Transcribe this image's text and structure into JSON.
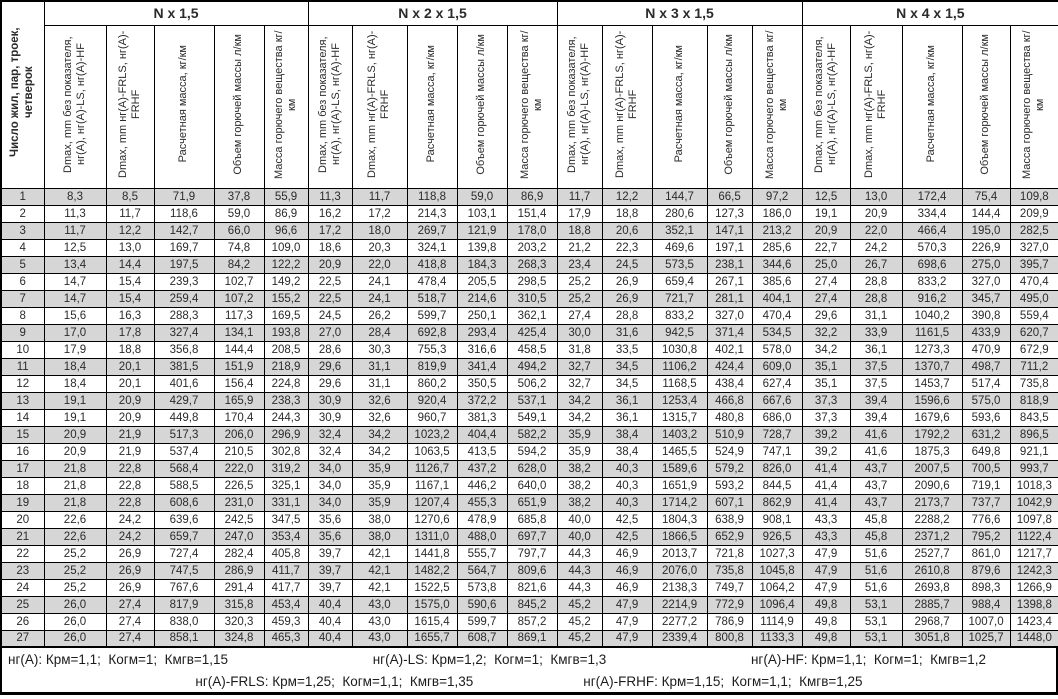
{
  "table": {
    "row_header_label": "Число жил, пар, троек, четверок",
    "groups": [
      {
        "title": "N x 1,5"
      },
      {
        "title": "N x 2 x 1,5"
      },
      {
        "title": "N x 3 x 1,5"
      },
      {
        "title": "N x 4 x 1,5"
      }
    ],
    "subheaders": [
      "Dmax, mm без показателя, нг(A), нг(A)-LS, нг(A)-HF",
      "Dmax, mm нг(A)-FRLS, нг(A)-FRHF",
      "Расчетная масса, кг/км",
      "Объем горючей массы л/км",
      "Масса горючего вещества кг/км"
    ],
    "rows": [
      {
        "n": "1",
        "cells": [
          "8,3",
          "8,5",
          "71,9",
          "37,8",
          "55,9",
          "11,3",
          "11,7",
          "118,8",
          "59,0",
          "86,9",
          "11,7",
          "12,2",
          "144,7",
          "66,5",
          "97,2",
          "12,5",
          "13,0",
          "172,4",
          "75,4",
          "109,8"
        ]
      },
      {
        "n": "2",
        "cells": [
          "11,3",
          "11,7",
          "118,6",
          "59,0",
          "86,9",
          "16,2",
          "17,2",
          "214,3",
          "103,1",
          "151,4",
          "17,9",
          "18,8",
          "280,6",
          "127,3",
          "186,0",
          "19,1",
          "20,9",
          "334,4",
          "144,4",
          "209,9"
        ]
      },
      {
        "n": "3",
        "cells": [
          "11,7",
          "12,2",
          "142,7",
          "66,0",
          "96,6",
          "17,2",
          "18,0",
          "269,7",
          "121,9",
          "178,0",
          "18,8",
          "20,6",
          "352,1",
          "147,1",
          "213,2",
          "20,9",
          "22,0",
          "466,4",
          "195,0",
          "282,5"
        ]
      },
      {
        "n": "4",
        "cells": [
          "12,5",
          "13,0",
          "169,7",
          "74,8",
          "109,0",
          "18,6",
          "20,3",
          "324,1",
          "139,8",
          "203,2",
          "21,2",
          "22,3",
          "469,6",
          "197,1",
          "285,6",
          "22,7",
          "24,2",
          "570,3",
          "226,9",
          "327,0"
        ]
      },
      {
        "n": "5",
        "cells": [
          "13,4",
          "14,4",
          "197,5",
          "84,2",
          "122,2",
          "20,9",
          "22,0",
          "418,8",
          "184,3",
          "268,3",
          "23,4",
          "24,5",
          "573,5",
          "238,1",
          "344,6",
          "25,0",
          "26,7",
          "698,6",
          "275,0",
          "395,7"
        ]
      },
      {
        "n": "6",
        "cells": [
          "14,7",
          "15,4",
          "239,3",
          "102,7",
          "149,2",
          "22,5",
          "24,1",
          "478,4",
          "205,5",
          "298,5",
          "25,2",
          "26,9",
          "659,4",
          "267,1",
          "385,6",
          "27,4",
          "28,8",
          "833,2",
          "327,0",
          "470,4"
        ]
      },
      {
        "n": "7",
        "cells": [
          "14,7",
          "15,4",
          "259,4",
          "107,2",
          "155,2",
          "22,5",
          "24,1",
          "518,7",
          "214,6",
          "310,5",
          "25,2",
          "26,9",
          "721,7",
          "281,1",
          "404,1",
          "27,4",
          "28,8",
          "916,2",
          "345,7",
          "495,0"
        ]
      },
      {
        "n": "8",
        "cells": [
          "15,6",
          "16,3",
          "288,3",
          "117,3",
          "169,5",
          "24,5",
          "26,2",
          "599,7",
          "250,1",
          "362,1",
          "27,4",
          "28,8",
          "833,2",
          "327,0",
          "470,4",
          "29,6",
          "31,1",
          "1040,2",
          "390,8",
          "559,4"
        ]
      },
      {
        "n": "9",
        "cells": [
          "17,0",
          "17,8",
          "327,4",
          "134,1",
          "193,8",
          "27,0",
          "28,4",
          "692,8",
          "293,4",
          "425,4",
          "30,0",
          "31,6",
          "942,5",
          "371,4",
          "534,5",
          "32,2",
          "33,9",
          "1161,5",
          "433,9",
          "620,7"
        ]
      },
      {
        "n": "10",
        "cells": [
          "17,9",
          "18,8",
          "356,8",
          "144,4",
          "208,5",
          "28,6",
          "30,3",
          "755,3",
          "316,6",
          "458,5",
          "31,8",
          "33,5",
          "1030,8",
          "402,1",
          "578,0",
          "34,2",
          "36,1",
          "1273,3",
          "470,9",
          "672,9"
        ]
      },
      {
        "n": "11",
        "cells": [
          "18,4",
          "20,1",
          "381,5",
          "151,9",
          "218,9",
          "29,6",
          "31,1",
          "819,9",
          "341,4",
          "494,2",
          "32,7",
          "34,5",
          "1106,2",
          "424,4",
          "609,0",
          "35,1",
          "37,5",
          "1370,7",
          "498,7",
          "711,2"
        ]
      },
      {
        "n": "12",
        "cells": [
          "18,4",
          "20,1",
          "401,6",
          "156,4",
          "224,8",
          "29,6",
          "31,1",
          "860,2",
          "350,5",
          "506,2",
          "32,7",
          "34,5",
          "1168,5",
          "438,4",
          "627,4",
          "35,1",
          "37,5",
          "1453,7",
          "517,4",
          "735,8"
        ]
      },
      {
        "n": "13",
        "cells": [
          "19,1",
          "20,9",
          "429,7",
          "165,9",
          "238,3",
          "30,9",
          "32,6",
          "920,4",
          "372,2",
          "537,1",
          "34,2",
          "36,1",
          "1253,4",
          "466,8",
          "667,6",
          "37,3",
          "39,4",
          "1596,6",
          "575,0",
          "818,9"
        ]
      },
      {
        "n": "14",
        "cells": [
          "19,1",
          "20,9",
          "449,8",
          "170,4",
          "244,3",
          "30,9",
          "32,6",
          "960,7",
          "381,3",
          "549,1",
          "34,2",
          "36,1",
          "1315,7",
          "480,8",
          "686,0",
          "37,3",
          "39,4",
          "1679,6",
          "593,6",
          "843,5"
        ]
      },
      {
        "n": "15",
        "cells": [
          "20,9",
          "21,9",
          "517,3",
          "206,0",
          "296,9",
          "32,4",
          "34,2",
          "1023,2",
          "404,4",
          "582,2",
          "35,9",
          "38,4",
          "1403,2",
          "510,9",
          "728,7",
          "39,2",
          "41,6",
          "1792,2",
          "631,2",
          "896,5"
        ]
      },
      {
        "n": "16",
        "cells": [
          "20,9",
          "21,9",
          "537,4",
          "210,5",
          "302,8",
          "32,4",
          "34,2",
          "1063,5",
          "413,5",
          "594,2",
          "35,9",
          "38,4",
          "1465,5",
          "524,9",
          "747,1",
          "39,2",
          "41,6",
          "1875,3",
          "649,8",
          "921,1"
        ]
      },
      {
        "n": "17",
        "cells": [
          "21,8",
          "22,8",
          "568,4",
          "222,0",
          "319,2",
          "34,0",
          "35,9",
          "1126,7",
          "437,2",
          "628,0",
          "38,2",
          "40,3",
          "1589,6",
          "579,2",
          "826,0",
          "41,4",
          "43,7",
          "2007,5",
          "700,5",
          "993,7"
        ]
      },
      {
        "n": "18",
        "cells": [
          "21,8",
          "22,8",
          "588,5",
          "226,5",
          "325,1",
          "34,0",
          "35,9",
          "1167,1",
          "446,2",
          "640,0",
          "38,2",
          "40,3",
          "1651,9",
          "593,2",
          "844,5",
          "41,4",
          "43,7",
          "2090,6",
          "719,1",
          "1018,3"
        ]
      },
      {
        "n": "19",
        "cells": [
          "21,8",
          "22,8",
          "608,6",
          "231,0",
          "331,1",
          "34,0",
          "35,9",
          "1207,4",
          "455,3",
          "651,9",
          "38,2",
          "40,3",
          "1714,2",
          "607,1",
          "862,9",
          "41,4",
          "43,7",
          "2173,7",
          "737,7",
          "1042,9"
        ]
      },
      {
        "n": "20",
        "cells": [
          "22,6",
          "24,2",
          "639,6",
          "242,5",
          "347,5",
          "35,6",
          "38,0",
          "1270,6",
          "478,9",
          "685,8",
          "40,0",
          "42,5",
          "1804,3",
          "638,9",
          "908,1",
          "43,3",
          "45,8",
          "2288,2",
          "776,6",
          "1097,8"
        ]
      },
      {
        "n": "21",
        "cells": [
          "22,6",
          "24,2",
          "659,7",
          "247,0",
          "353,4",
          "35,6",
          "38,0",
          "1311,0",
          "488,0",
          "697,7",
          "40,0",
          "42,5",
          "1866,5",
          "652,9",
          "926,5",
          "43,3",
          "45,8",
          "2371,2",
          "795,2",
          "1122,4"
        ]
      },
      {
        "n": "22",
        "cells": [
          "25,2",
          "26,9",
          "727,4",
          "282,4",
          "405,8",
          "39,7",
          "42,1",
          "1441,8",
          "555,7",
          "797,7",
          "44,3",
          "46,9",
          "2013,7",
          "721,8",
          "1027,3",
          "47,9",
          "51,6",
          "2527,7",
          "861,0",
          "1217,7"
        ]
      },
      {
        "n": "23",
        "cells": [
          "25,2",
          "26,9",
          "747,5",
          "286,9",
          "411,7",
          "39,7",
          "42,1",
          "1482,2",
          "564,7",
          "809,6",
          "44,3",
          "46,9",
          "2076,0",
          "735,8",
          "1045,8",
          "47,9",
          "51,6",
          "2610,8",
          "879,6",
          "1242,3"
        ]
      },
      {
        "n": "24",
        "cells": [
          "25,2",
          "26,9",
          "767,6",
          "291,4",
          "417,7",
          "39,7",
          "42,1",
          "1522,5",
          "573,8",
          "821,6",
          "44,3",
          "46,9",
          "2138,3",
          "749,7",
          "1064,2",
          "47,9",
          "51,6",
          "2693,8",
          "898,3",
          "1266,9"
        ]
      },
      {
        "n": "25",
        "cells": [
          "26,0",
          "27,4",
          "817,9",
          "315,8",
          "453,4",
          "40,4",
          "43,0",
          "1575,0",
          "590,6",
          "845,2",
          "45,2",
          "47,9",
          "2214,9",
          "772,9",
          "1096,4",
          "49,8",
          "53,1",
          "2885,7",
          "988,4",
          "1398,8"
        ]
      },
      {
        "n": "26",
        "cells": [
          "26,0",
          "27,4",
          "838,0",
          "320,3",
          "459,3",
          "40,4",
          "43,0",
          "1615,4",
          "599,7",
          "857,2",
          "45,2",
          "47,9",
          "2277,2",
          "786,9",
          "1114,9",
          "49,8",
          "53,1",
          "2968,7",
          "1007,0",
          "1423,4"
        ]
      },
      {
        "n": "27",
        "cells": [
          "26,0",
          "27,4",
          "858,1",
          "324,8",
          "465,3",
          "40,4",
          "43,0",
          "1655,7",
          "608,7",
          "869,1",
          "45,2",
          "47,9",
          "2339,4",
          "800,8",
          "1133,3",
          "49,8",
          "53,1",
          "3051,8",
          "1025,7",
          "1448,0"
        ]
      }
    ]
  },
  "footer": {
    "line1": [
      "нг(A): Крм=1,1;  Когм=1;  Кмгв=1,15",
      "нг(A)-LS: Крм=1,2;  Когм=1;  Кмгв=1,3",
      "нг(A)-HF: Крм=1,1;  Когм=1;  Кмгв=1,2"
    ],
    "line2": [
      "нг(A)-FRLS: Крм=1,25;  Когм=1,1;  Кмгв=1,35",
      "нг(A)-FRHF: Крм=1,15;  Когм=1,1;  Кмгв=1,25"
    ]
  },
  "colors": {
    "row_shade": "#d6d6d6",
    "border": "#000000"
  }
}
